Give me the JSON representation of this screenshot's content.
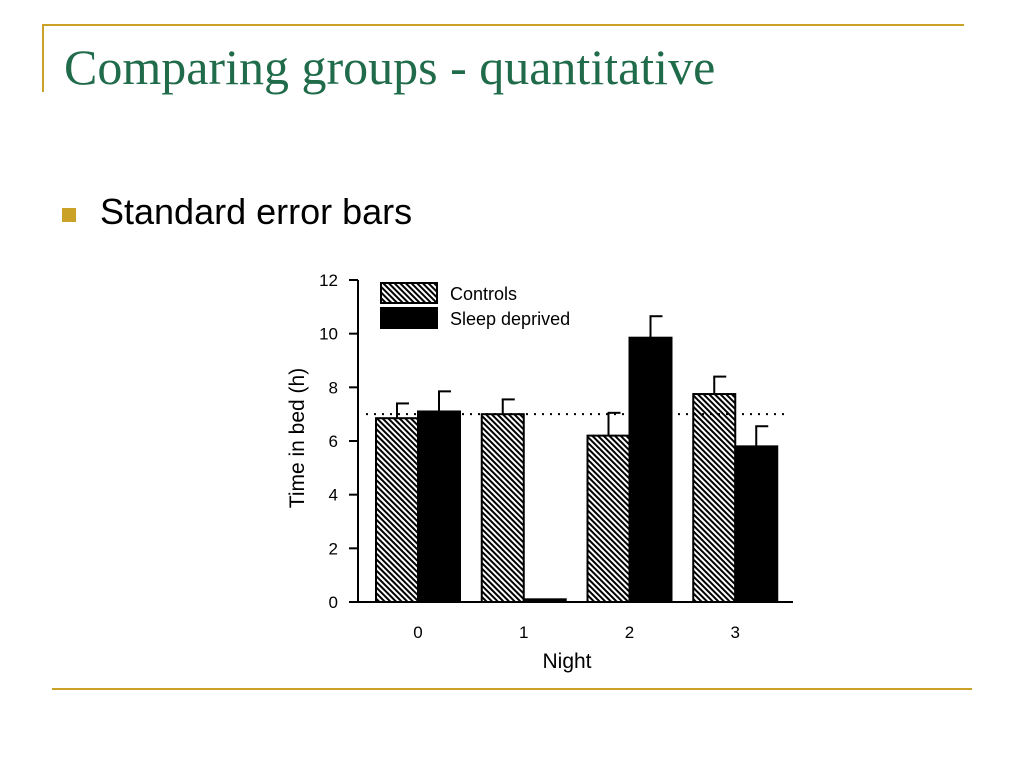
{
  "theme": {
    "accent": "#c9a227",
    "title_color": "#1f6b4a",
    "text_color": "#000000"
  },
  "slide": {
    "title": "Comparing groups - quantitative",
    "bullet": "Standard error bars"
  },
  "chart_data": {
    "type": "bar",
    "categories": [
      "0",
      "1",
      "2",
      "3"
    ],
    "series": [
      {
        "name": "Controls",
        "values": [
          6.85,
          7.0,
          6.2,
          7.75
        ],
        "errors": [
          0.55,
          0.55,
          0.85,
          0.65
        ],
        "pattern": "hatched"
      },
      {
        "name": "Sleep deprived",
        "values": [
          7.1,
          0.1,
          9.85,
          5.8
        ],
        "errors": [
          0.75,
          0.0,
          0.8,
          0.75
        ],
        "pattern": "solid"
      }
    ],
    "reference_line": 7,
    "xlabel": "Night",
    "ylabel": "Time in bed (h)",
    "ylim": [
      0,
      12
    ],
    "yticks": [
      0,
      2,
      4,
      6,
      8,
      10,
      12
    ],
    "legend_position": "top-left",
    "grid": false
  }
}
